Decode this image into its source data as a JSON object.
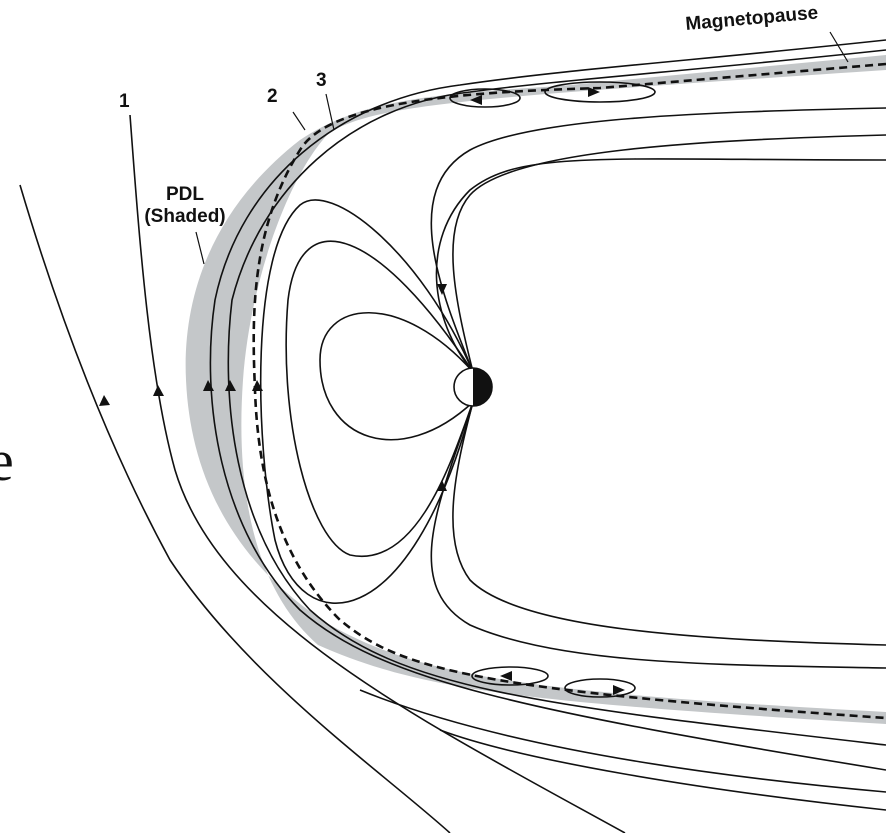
{
  "labels": {
    "magnetopause": "Magnetopause",
    "line1": "1",
    "line2": "2",
    "line3": "3",
    "pdl": "PDL",
    "pdl_note": "(Shaded)",
    "edge_text": "e"
  }
}
